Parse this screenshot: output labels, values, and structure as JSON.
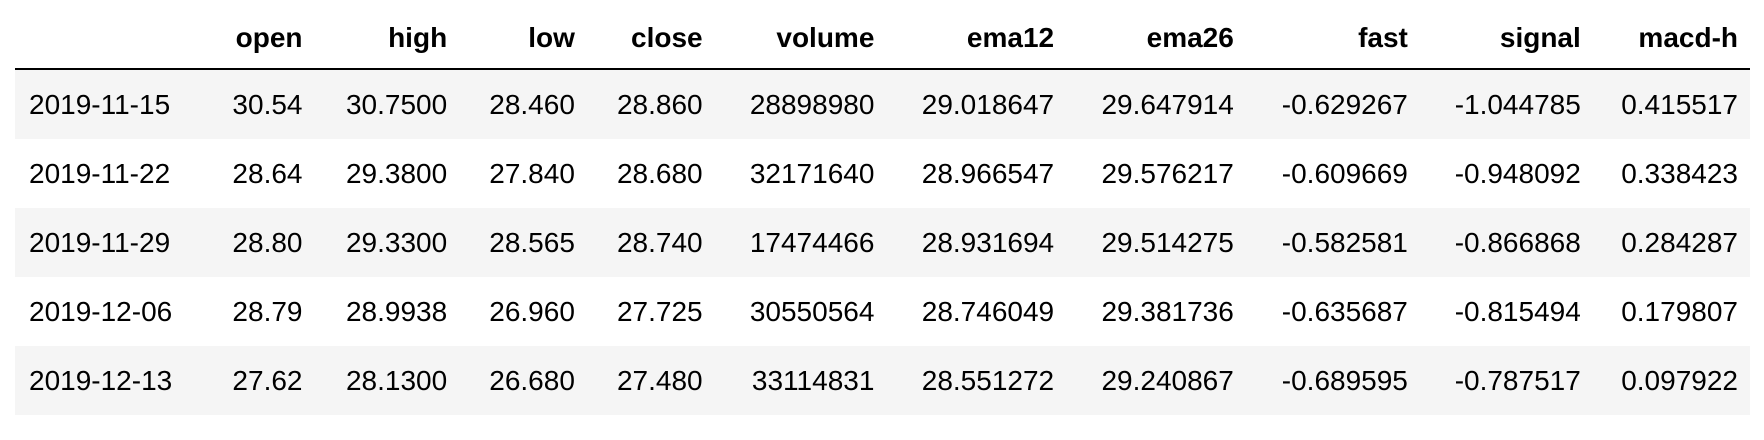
{
  "table": {
    "index_header": "",
    "columns": [
      "open",
      "high",
      "low",
      "close",
      "volume",
      "ema12",
      "ema26",
      "fast",
      "signal",
      "macd-h"
    ],
    "rows": [
      {
        "index": "2019-11-15",
        "cells": [
          "30.54",
          "30.7500",
          "28.460",
          "28.860",
          "28898980",
          "29.018647",
          "29.647914",
          "-0.629267",
          "-1.044785",
          "0.415517"
        ]
      },
      {
        "index": "2019-11-22",
        "cells": [
          "28.64",
          "29.3800",
          "27.840",
          "28.680",
          "32171640",
          "28.966547",
          "29.576217",
          "-0.609669",
          "-0.948092",
          "0.338423"
        ]
      },
      {
        "index": "2019-11-29",
        "cells": [
          "28.80",
          "29.3300",
          "28.565",
          "28.740",
          "17474466",
          "28.931694",
          "29.514275",
          "-0.582581",
          "-0.866868",
          "0.284287"
        ]
      },
      {
        "index": "2019-12-06",
        "cells": [
          "28.79",
          "28.9938",
          "26.960",
          "27.725",
          "30550564",
          "28.746049",
          "29.381736",
          "-0.635687",
          "-0.815494",
          "0.179807"
        ]
      },
      {
        "index": "2019-12-13",
        "cells": [
          "27.62",
          "28.1300",
          "26.680",
          "27.480",
          "33114831",
          "28.551272",
          "29.240867",
          "-0.689595",
          "-0.787517",
          "0.097922"
        ]
      }
    ]
  }
}
